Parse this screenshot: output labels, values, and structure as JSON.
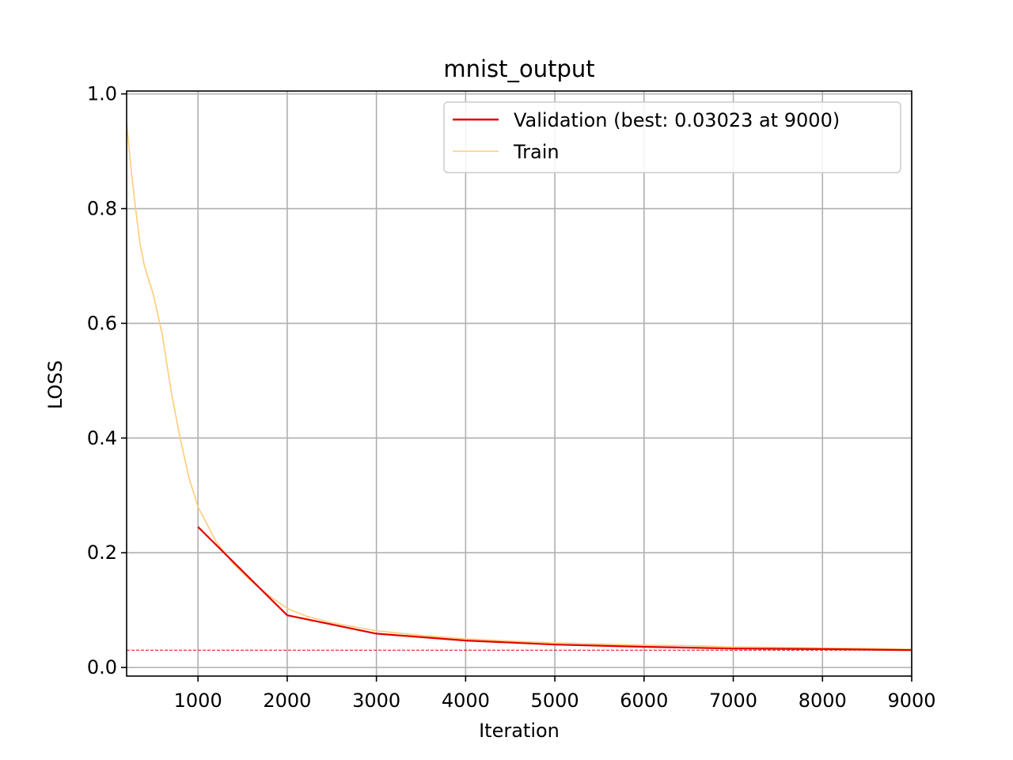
{
  "chart_data": {
    "type": "line",
    "title": "mnist_output",
    "xlabel": "Iteration",
    "ylabel": "LOSS",
    "xlim": [
      200,
      9000
    ],
    "ylim": [
      -0.015,
      1.005
    ],
    "xticks": [
      1000,
      2000,
      3000,
      4000,
      5000,
      6000,
      7000,
      8000,
      9000
    ],
    "yticks": [
      0.0,
      0.2,
      0.4,
      0.6,
      0.8,
      1.0
    ],
    "ytick_labels": [
      "0.0",
      "0.2",
      "0.4",
      "0.6",
      "0.8",
      "1.0"
    ],
    "grid": true,
    "legend_position": "top-right",
    "best_line": {
      "y": 0.03023,
      "color": "#e00000",
      "style": "dashed"
    },
    "series": [
      {
        "name": "Validation (best: 0.03023 at 9000)",
        "color": "#e00000",
        "x": [
          1000,
          2000,
          3000,
          4000,
          5000,
          6000,
          7000,
          8000,
          9000
        ],
        "y": [
          0.245,
          0.091,
          0.059,
          0.047,
          0.04,
          0.036,
          0.033,
          0.032,
          0.03023
        ]
      },
      {
        "name": "Train",
        "color": "#ffcc77",
        "x": [
          200,
          250,
          300,
          350,
          400,
          500,
          600,
          700,
          800,
          900,
          1000,
          1100,
          1200,
          1300,
          1400,
          1500,
          1600,
          1800,
          2000,
          2200,
          2500,
          3000,
          3500,
          4000,
          4500,
          5000,
          5500,
          6000,
          6500,
          7000,
          7500,
          8000,
          8500,
          9000
        ],
        "y": [
          0.95,
          0.87,
          0.8,
          0.74,
          0.7,
          0.65,
          0.58,
          0.48,
          0.4,
          0.33,
          0.28,
          0.25,
          0.22,
          0.2,
          0.18,
          0.165,
          0.15,
          0.125,
          0.103,
          0.09,
          0.078,
          0.064,
          0.056,
          0.05,
          0.046,
          0.043,
          0.041,
          0.039,
          0.038,
          0.036,
          0.035,
          0.034,
          0.033,
          0.032
        ]
      }
    ]
  }
}
